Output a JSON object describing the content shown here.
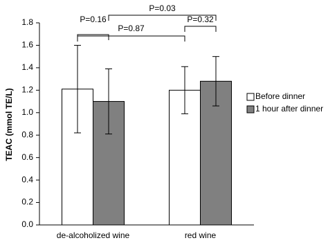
{
  "chart_data": {
    "type": "bar",
    "ylabel": "TEAC (mmol TE/L)",
    "categories": [
      "de-alcoholized wine",
      "red wine"
    ],
    "series": [
      {
        "name": "Before dinner",
        "color": "#ffffff",
        "values": [
          1.21,
          1.2
        ],
        "errors": [
          0.39,
          0.21
        ]
      },
      {
        "name": "1 hour after dinner",
        "color": "#808080",
        "values": [
          1.1,
          1.28
        ],
        "errors": [
          0.29,
          0.22
        ]
      }
    ],
    "ylim": [
      0,
      1.8
    ],
    "yticks": [
      {
        "value": 0,
        "label": "0.0"
      },
      {
        "value": 0.2,
        "label": "0.2"
      },
      {
        "value": 0.4,
        "label": "0.4"
      },
      {
        "value": 0.6,
        "label": "0.6"
      },
      {
        "value": 0.8,
        "label": "0.8"
      },
      {
        "value": 1,
        "label": "1.0"
      },
      {
        "value": 1.2,
        "label": "1.2"
      },
      {
        "value": 1.4,
        "label": "1.4"
      },
      {
        "value": 1.6,
        "label": "1.6"
      },
      {
        "value": 1.8,
        "label": "1.8"
      }
    ],
    "grid": false,
    "legend": "right",
    "annotations": [
      "P=0.16",
      "P=0.03",
      "P=0.87",
      "P=0.32"
    ]
  }
}
